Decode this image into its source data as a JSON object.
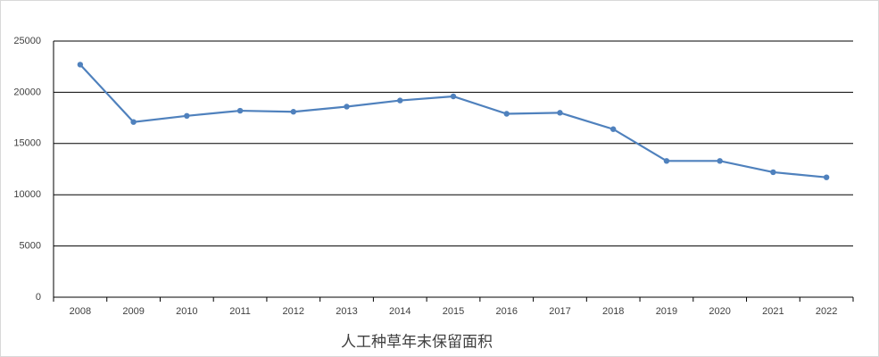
{
  "chart_data": {
    "type": "line",
    "title": "人工种草年末保留面积",
    "categories": [
      "2008",
      "2009",
      "2010",
      "2011",
      "2012",
      "2013",
      "2014",
      "2015",
      "2016",
      "2017",
      "2018",
      "2019",
      "2020",
      "2021",
      "2022"
    ],
    "series": [
      {
        "color": "#4f81bd",
        "values": [
          22700,
          17100,
          17700,
          18200,
          18100,
          18600,
          19200,
          19600,
          17900,
          18000,
          16400,
          13300,
          13300,
          12200,
          11700
        ]
      }
    ],
    "ylim": [
      0,
      25000
    ],
    "yticks": [
      0,
      5000,
      10000,
      15000,
      20000,
      25000
    ],
    "grid": true
  }
}
